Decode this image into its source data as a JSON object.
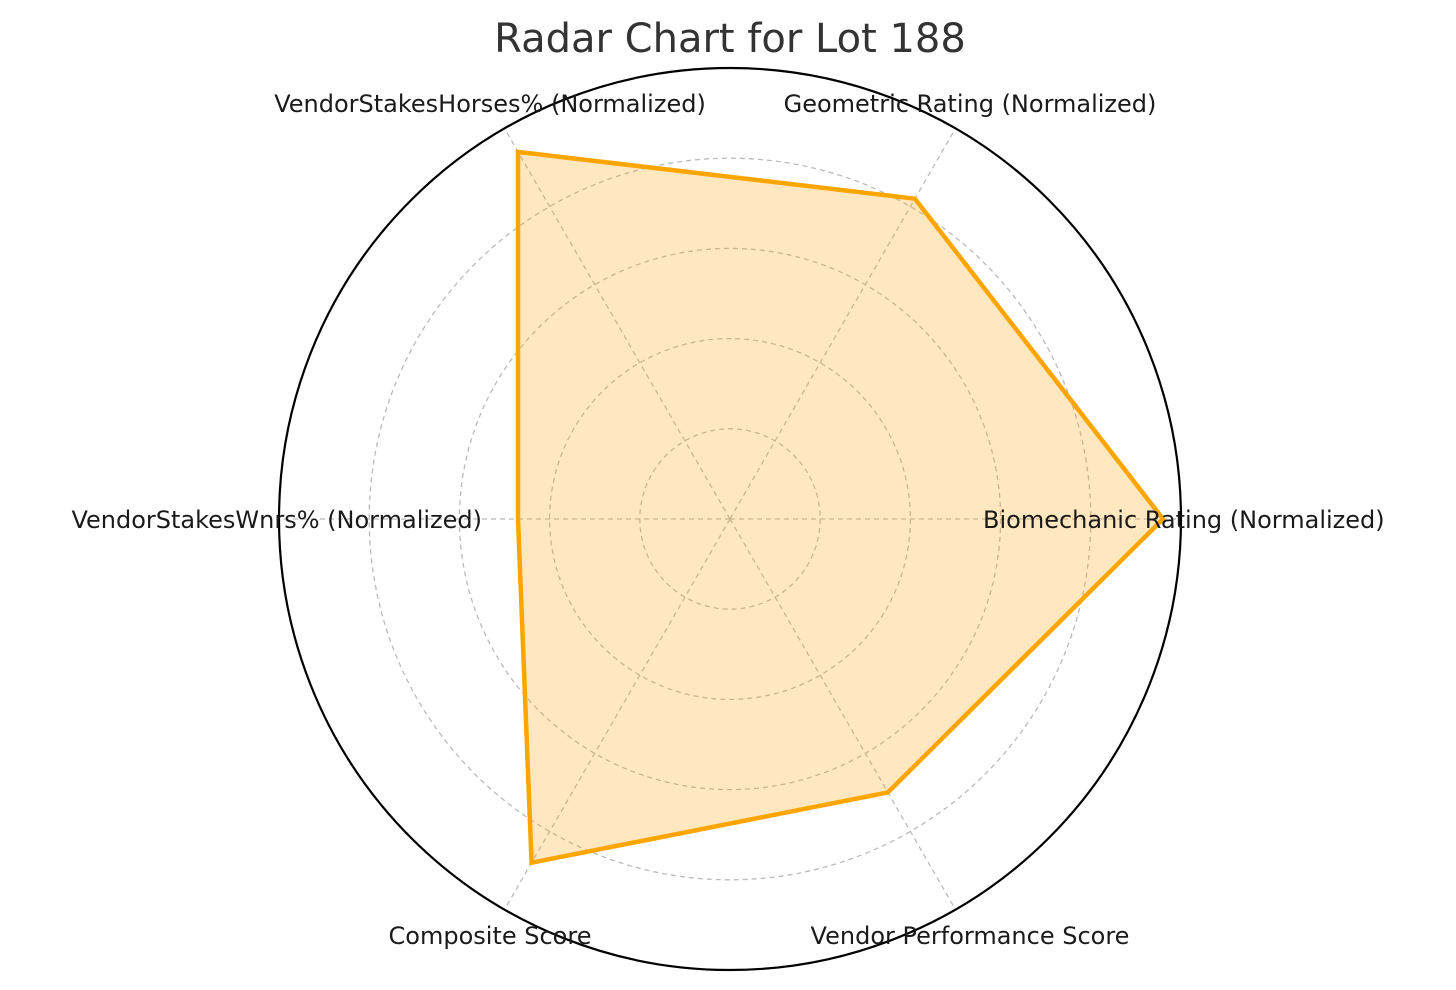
{
  "chart_data": {
    "type": "radar",
    "title": "Radar Chart for Lot 188",
    "axes": [
      "Biomechanic Rating (Normalized)",
      "Geometric Rating (Normalized)",
      "VendorStakesHorses% (Normalized)",
      "VendorStakesWnrs% (Normalized)",
      "Composite Score",
      "Vendor Performance Score"
    ],
    "series": [
      {
        "values": [
          0.96,
          0.82,
          0.94,
          0.47,
          0.88,
          0.7
        ]
      }
    ],
    "rlim": [
      0,
      1
    ],
    "rings": [
      0.2,
      0.4,
      0.6,
      0.8
    ],
    "grid": true,
    "legend": false,
    "colors": {
      "line": "#FFA500",
      "fill": "#FFA500",
      "grid": "#bbbbbb",
      "frame": "#000000"
    }
  }
}
